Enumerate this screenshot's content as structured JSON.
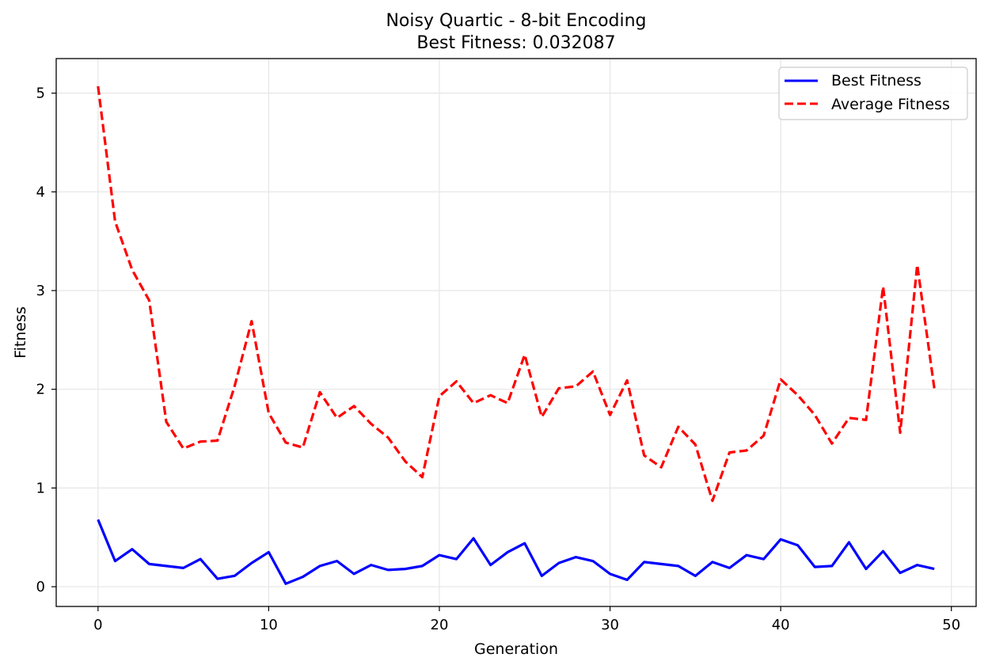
{
  "chart_data": {
    "type": "line",
    "title": "Noisy Quartic - 8-bit Encoding",
    "subtitle": "Best Fitness: 0.032087",
    "xlabel": "Generation",
    "ylabel": "Fitness",
    "xlim": [
      -2.45,
      51.45
    ],
    "ylim": [
      -0.2,
      5.35
    ],
    "xticks": [
      0,
      10,
      20,
      30,
      40,
      50
    ],
    "yticks": [
      0,
      1,
      2,
      3,
      4,
      5
    ],
    "grid": true,
    "legend_position": "top-right",
    "x": [
      0,
      1,
      2,
      3,
      4,
      5,
      6,
      7,
      8,
      9,
      10,
      11,
      12,
      13,
      14,
      15,
      16,
      17,
      18,
      19,
      20,
      21,
      22,
      23,
      24,
      25,
      26,
      27,
      28,
      29,
      30,
      31,
      32,
      33,
      34,
      35,
      36,
      37,
      38,
      39,
      40,
      41,
      42,
      43,
      44,
      45,
      46,
      47,
      48,
      49
    ],
    "series": [
      {
        "name": "Best Fitness",
        "color": "#0000ff",
        "style": "solid",
        "values": [
          0.68,
          0.26,
          0.38,
          0.23,
          0.21,
          0.19,
          0.28,
          0.08,
          0.11,
          0.24,
          0.35,
          0.03,
          0.1,
          0.21,
          0.26,
          0.13,
          0.22,
          0.17,
          0.18,
          0.21,
          0.32,
          0.28,
          0.49,
          0.22,
          0.35,
          0.44,
          0.11,
          0.24,
          0.3,
          0.26,
          0.13,
          0.07,
          0.25,
          0.23,
          0.21,
          0.11,
          0.25,
          0.19,
          0.32,
          0.28,
          0.48,
          0.42,
          0.2,
          0.21,
          0.45,
          0.18,
          0.36,
          0.14,
          0.22,
          0.18
        ]
      },
      {
        "name": "Average Fitness",
        "color": "#ff0000",
        "style": "dashed",
        "values": [
          5.07,
          3.7,
          3.21,
          2.9,
          1.67,
          1.4,
          1.47,
          1.48,
          2.03,
          2.69,
          1.76,
          1.46,
          1.41,
          1.97,
          1.71,
          1.83,
          1.65,
          1.51,
          1.27,
          1.11,
          1.93,
          2.08,
          1.86,
          1.94,
          1.86,
          2.35,
          1.72,
          2.01,
          2.03,
          2.18,
          1.74,
          2.09,
          1.33,
          1.21,
          1.62,
          1.44,
          0.87,
          1.36,
          1.38,
          1.53,
          2.1,
          1.94,
          1.74,
          1.45,
          1.71,
          1.69,
          3.04,
          1.56,
          3.26,
          2.01
        ]
      }
    ]
  }
}
